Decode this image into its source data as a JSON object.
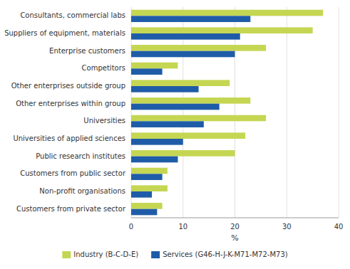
{
  "chart_data": {
    "type": "bar",
    "orientation": "horizontal",
    "categories": [
      "Consultants, commercial labs",
      "Suppliers of equipment, materials",
      "Enterprise customers",
      "Competitors",
      "Other enterprises outside group",
      "Other enterprises within group",
      "Universities",
      "Universities of applied sciences",
      "Public research institutes",
      "Customers from public sector",
      "Non-profit organisations",
      "Customers from private sector"
    ],
    "series": [
      {
        "name": "Industry (B-C-D-E)",
        "color": "#c5d653",
        "values": [
          37,
          35,
          26,
          9,
          19,
          23,
          26,
          22,
          20,
          7,
          7,
          6
        ]
      },
      {
        "name": "Services (G46-H-J-K-M71-M72-M73)",
        "color": "#1f5ca8",
        "values": [
          23,
          21,
          20,
          6,
          13,
          17,
          14,
          10,
          9,
          6,
          4,
          5
        ]
      }
    ],
    "x_label": "%",
    "xlim": [
      0,
      40
    ],
    "xticks": [
      0,
      10,
      20,
      30,
      40
    ],
    "grid": true,
    "legend": "bottom"
  }
}
